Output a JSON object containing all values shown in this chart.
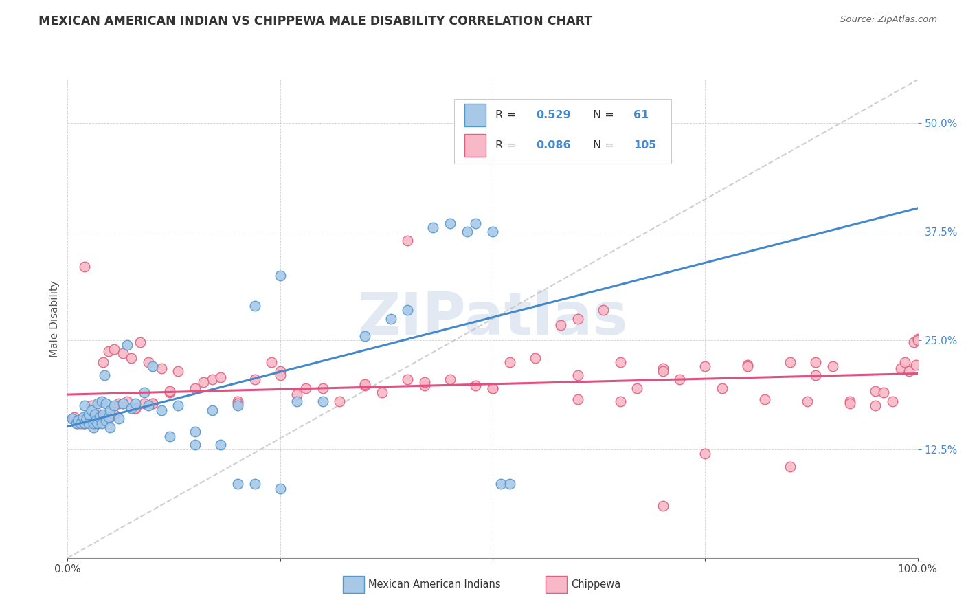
{
  "title": "MEXICAN AMERICAN INDIAN VS CHIPPEWA MALE DISABILITY CORRELATION CHART",
  "source": "Source: ZipAtlas.com",
  "ylabel": "Male Disability",
  "xlim": [
    0.0,
    1.0
  ],
  "ylim": [
    0.0,
    0.55
  ],
  "ytick_positions": [
    0.125,
    0.25,
    0.375,
    0.5
  ],
  "ytick_labels": [
    "12.5%",
    "25.0%",
    "37.5%",
    "50.0%"
  ],
  "color_blue_fill": "#a8c8e8",
  "color_blue_edge": "#5599cc",
  "color_pink_fill": "#f8b8c8",
  "color_pink_edge": "#e06080",
  "color_blue_line": "#4488cc",
  "color_pink_line": "#e05080",
  "color_dashed": "#bbbbbb",
  "color_text_blue": "#4488cc",
  "watermark_color": "#ccd8e8",
  "blue_scatter_x": [
    0.005,
    0.01,
    0.012,
    0.015,
    0.018,
    0.02,
    0.02,
    0.022,
    0.025,
    0.025,
    0.028,
    0.03,
    0.03,
    0.032,
    0.033,
    0.035,
    0.035,
    0.038,
    0.04,
    0.04,
    0.042,
    0.043,
    0.045,
    0.045,
    0.048,
    0.05,
    0.05,
    0.055,
    0.06,
    0.065,
    0.07,
    0.075,
    0.08,
    0.09,
    0.095,
    0.1,
    0.11,
    0.12,
    0.13,
    0.15,
    0.17,
    0.2,
    0.22,
    0.25,
    0.27,
    0.3,
    0.35,
    0.38,
    0.4,
    0.43,
    0.45,
    0.47,
    0.48,
    0.5,
    0.51,
    0.52,
    0.15,
    0.18,
    0.2,
    0.22,
    0.25
  ],
  "blue_scatter_y": [
    0.16,
    0.155,
    0.158,
    0.155,
    0.162,
    0.155,
    0.175,
    0.16,
    0.155,
    0.165,
    0.17,
    0.15,
    0.155,
    0.165,
    0.158,
    0.155,
    0.178,
    0.162,
    0.155,
    0.18,
    0.165,
    0.21,
    0.158,
    0.178,
    0.162,
    0.15,
    0.17,
    0.175,
    0.16,
    0.178,
    0.245,
    0.172,
    0.178,
    0.19,
    0.175,
    0.22,
    0.17,
    0.14,
    0.175,
    0.145,
    0.17,
    0.175,
    0.29,
    0.325,
    0.18,
    0.18,
    0.255,
    0.275,
    0.285,
    0.38,
    0.385,
    0.375,
    0.385,
    0.375,
    0.085,
    0.085,
    0.13,
    0.13,
    0.085,
    0.085,
    0.08
  ],
  "pink_scatter_x": [
    0.005,
    0.008,
    0.01,
    0.012,
    0.015,
    0.018,
    0.02,
    0.022,
    0.025,
    0.028,
    0.03,
    0.032,
    0.035,
    0.038,
    0.04,
    0.042,
    0.045,
    0.048,
    0.05,
    0.055,
    0.06,
    0.065,
    0.07,
    0.075,
    0.08,
    0.085,
    0.09,
    0.095,
    0.1,
    0.11,
    0.12,
    0.13,
    0.15,
    0.17,
    0.18,
    0.2,
    0.22,
    0.25,
    0.27,
    0.3,
    0.32,
    0.35,
    0.37,
    0.4,
    0.42,
    0.45,
    0.48,
    0.5,
    0.52,
    0.55,
    0.58,
    0.6,
    0.63,
    0.65,
    0.67,
    0.7,
    0.72,
    0.75,
    0.77,
    0.8,
    0.82,
    0.85,
    0.87,
    0.9,
    0.92,
    0.95,
    0.97,
    0.98,
    0.985,
    0.99,
    0.995,
    0.998,
    1.0,
    0.02,
    0.03,
    0.035,
    0.045,
    0.055,
    0.065,
    0.08,
    0.1,
    0.12,
    0.16,
    0.2,
    0.24,
    0.28,
    0.35,
    0.42,
    0.5,
    0.6,
    0.7,
    0.8,
    0.88,
    0.92,
    0.96,
    1.0,
    0.75,
    0.85,
    0.88,
    0.7,
    0.95,
    0.65,
    0.6,
    0.4,
    0.25
  ],
  "pink_scatter_y": [
    0.16,
    0.162,
    0.158,
    0.155,
    0.158,
    0.155,
    0.155,
    0.162,
    0.16,
    0.175,
    0.155,
    0.16,
    0.16,
    0.165,
    0.158,
    0.225,
    0.16,
    0.238,
    0.162,
    0.24,
    0.178,
    0.235,
    0.18,
    0.23,
    0.172,
    0.248,
    0.178,
    0.225,
    0.178,
    0.218,
    0.19,
    0.215,
    0.195,
    0.205,
    0.208,
    0.18,
    0.205,
    0.215,
    0.188,
    0.195,
    0.18,
    0.198,
    0.19,
    0.205,
    0.198,
    0.205,
    0.198,
    0.195,
    0.225,
    0.23,
    0.268,
    0.275,
    0.285,
    0.18,
    0.195,
    0.218,
    0.205,
    0.22,
    0.195,
    0.222,
    0.182,
    0.225,
    0.18,
    0.22,
    0.18,
    0.192,
    0.18,
    0.218,
    0.225,
    0.215,
    0.248,
    0.222,
    0.252,
    0.335,
    0.16,
    0.162,
    0.16,
    0.165,
    0.178,
    0.172,
    0.178,
    0.192,
    0.202,
    0.178,
    0.225,
    0.195,
    0.2,
    0.202,
    0.195,
    0.21,
    0.215,
    0.22,
    0.225,
    0.178,
    0.19,
    0.25,
    0.12,
    0.105,
    0.21,
    0.06,
    0.175,
    0.225,
    0.182,
    0.365,
    0.21
  ]
}
